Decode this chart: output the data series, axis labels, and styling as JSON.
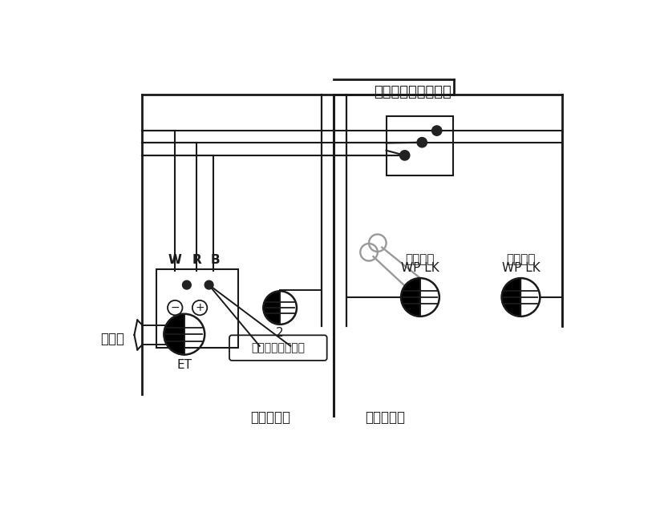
{
  "bg_color": "#ffffff",
  "lc": "#1a1a1a",
  "gc": "#999999",
  "joint_box_label": "ジョイントボックス",
  "switch_label": "換気扇用スイッチ",
  "outlet2_label": "2",
  "et_label": "ET",
  "bundenban_label": "分電盤",
  "w_label": "W",
  "r_label": "R",
  "b_label": "B",
  "wplk1_line1": "WP LK",
  "wplk1_line2": "換気扇用",
  "wplk2_line1": "WP LK",
  "wplk2_line2": "給湯器用",
  "indoor_label": "＜屋内側＞",
  "outdoor_label": "＜屋外側＞"
}
